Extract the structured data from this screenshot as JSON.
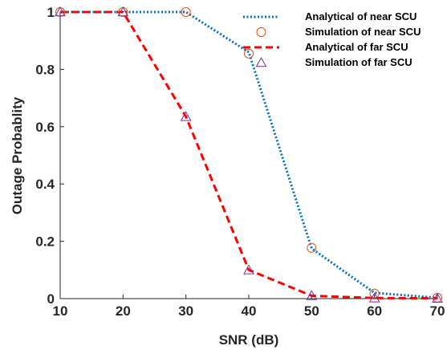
{
  "chart_data": {
    "type": "line",
    "xlabel": "SNR (dB)",
    "ylabel": "Outage Probablity",
    "xlim": [
      10,
      70
    ],
    "ylim": [
      0,
      1
    ],
    "x_ticks": [
      "10",
      "20",
      "30",
      "40",
      "50",
      "60",
      "70"
    ],
    "y_ticks": [
      "0",
      "0.2",
      "0.4",
      "0.6",
      "0.8",
      "1"
    ],
    "grid": false,
    "legend_position": "top-right",
    "x": [
      10,
      20,
      30,
      40,
      50,
      60,
      70
    ],
    "series": [
      {
        "name": "Analytical of near SCU",
        "values": [
          1,
          1,
          1,
          0.86,
          0.175,
          0.02,
          0.003
        ],
        "color": "#0072BD",
        "style": "dotted",
        "marker": "none"
      },
      {
        "name": "Simulation of near SCU",
        "values": [
          1,
          1,
          1,
          0.855,
          0.177,
          0.018,
          0.003
        ],
        "color": "#D95319",
        "style": "none",
        "marker": "circle"
      },
      {
        "name": "Analytical of far SCU",
        "values": [
          1,
          1,
          0.635,
          0.1,
          0.01,
          0.002,
          0.001
        ],
        "color": "#FF0000",
        "style": "dashed",
        "marker": "none"
      },
      {
        "name": "Simulation of far SCU",
        "values": [
          1,
          1,
          0.635,
          0.1,
          0.01,
          0.002,
          0.001
        ],
        "color": "#7E2F8E",
        "style": "none",
        "marker": "triangle"
      }
    ]
  }
}
